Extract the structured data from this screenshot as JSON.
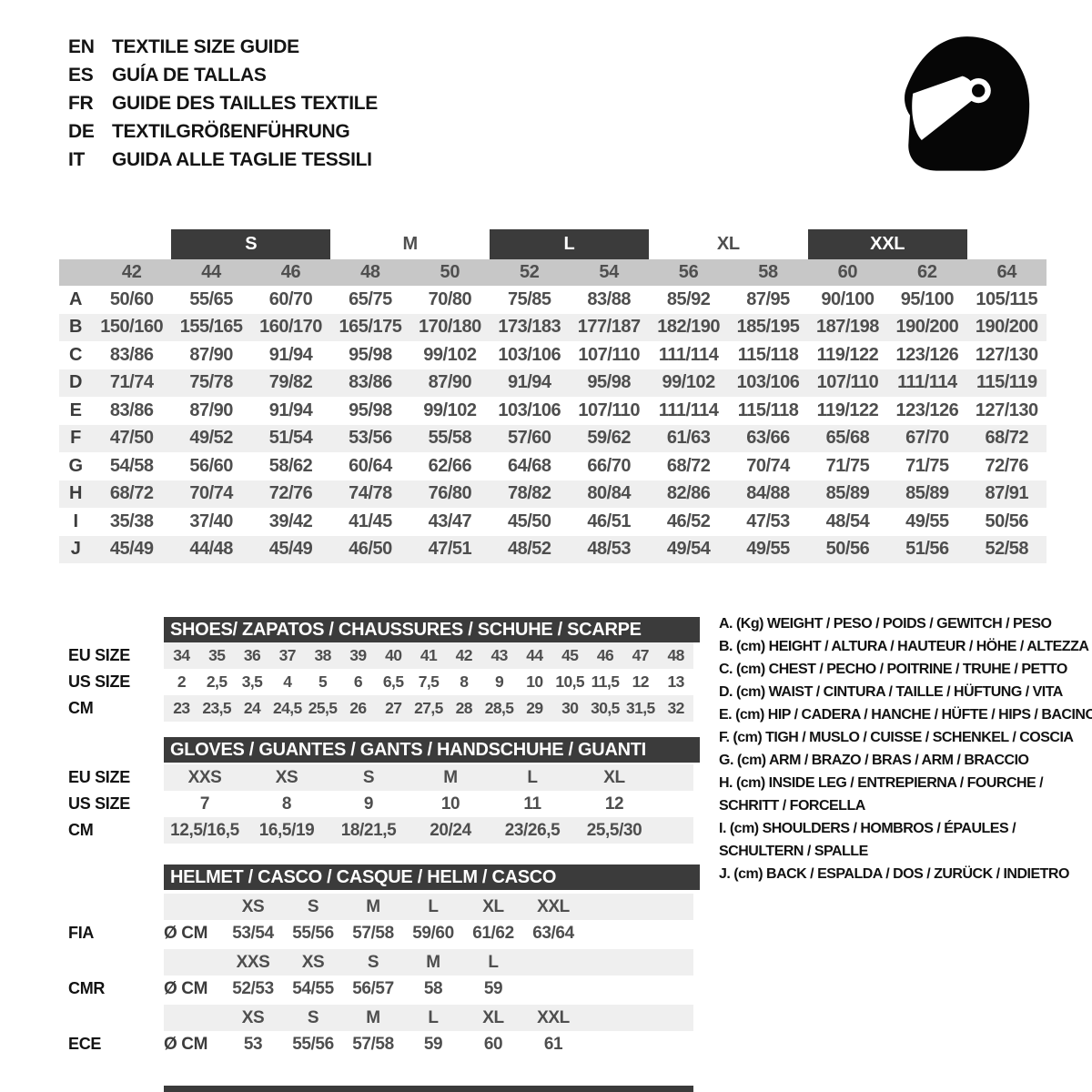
{
  "colors": {
    "dark_bar": "#3b3b3b",
    "number_band": "#c7c7c7",
    "row_stripe": "#efefef"
  },
  "header": {
    "languages": [
      {
        "code": "EN",
        "label": "TEXTILE SIZE GUIDE"
      },
      {
        "code": "ES",
        "label": "GUÍA DE TALLAS"
      },
      {
        "code": "FR",
        "label": "GUIDE DES TAILLES TEXTILE"
      },
      {
        "code": "DE",
        "label": "TEXTILGRÖßENFÜHRUNG"
      },
      {
        "code": "IT",
        "label": "GUIDA ALLE TAGLIE TESSILI"
      }
    ],
    "icon": "racing-helmet"
  },
  "main_table": {
    "groups": [
      {
        "label": "S",
        "boxed": true
      },
      {
        "label": "M",
        "boxed": false
      },
      {
        "label": "L",
        "boxed": true
      },
      {
        "label": "XL",
        "boxed": false
      },
      {
        "label": "XXL",
        "boxed": true
      }
    ],
    "columns": [
      "42",
      "44",
      "46",
      "48",
      "50",
      "52",
      "54",
      "56",
      "58",
      "60",
      "62",
      "64"
    ],
    "rows": [
      {
        "letter": "A",
        "values": [
          "50/60",
          "55/65",
          "60/70",
          "65/75",
          "70/80",
          "75/85",
          "83/88",
          "85/92",
          "87/95",
          "90/100",
          "95/100",
          "105/115"
        ]
      },
      {
        "letter": "B",
        "values": [
          "150/160",
          "155/165",
          "160/170",
          "165/175",
          "170/180",
          "173/183",
          "177/187",
          "182/190",
          "185/195",
          "187/198",
          "190/200",
          "190/200"
        ]
      },
      {
        "letter": "C",
        "values": [
          "83/86",
          "87/90",
          "91/94",
          "95/98",
          "99/102",
          "103/106",
          "107/110",
          "111/114",
          "115/118",
          "119/122",
          "123/126",
          "127/130"
        ]
      },
      {
        "letter": "D",
        "values": [
          "71/74",
          "75/78",
          "79/82",
          "83/86",
          "87/90",
          "91/94",
          "95/98",
          "99/102",
          "103/106",
          "107/110",
          "111/114",
          "115/119"
        ]
      },
      {
        "letter": "E",
        "values": [
          "83/86",
          "87/90",
          "91/94",
          "95/98",
          "99/102",
          "103/106",
          "107/110",
          "111/114",
          "115/118",
          "119/122",
          "123/126",
          "127/130"
        ]
      },
      {
        "letter": "F",
        "values": [
          "47/50",
          "49/52",
          "51/54",
          "53/56",
          "55/58",
          "57/60",
          "59/62",
          "61/63",
          "63/66",
          "65/68",
          "67/70",
          "68/72"
        ]
      },
      {
        "letter": "G",
        "values": [
          "54/58",
          "56/60",
          "58/62",
          "60/64",
          "62/66",
          "64/68",
          "66/70",
          "68/72",
          "70/74",
          "71/75",
          "71/75",
          "72/76"
        ]
      },
      {
        "letter": "H",
        "values": [
          "68/72",
          "70/74",
          "72/76",
          "74/78",
          "76/80",
          "78/82",
          "80/84",
          "82/86",
          "84/88",
          "85/89",
          "85/89",
          "87/91"
        ]
      },
      {
        "letter": "I",
        "values": [
          "35/38",
          "37/40",
          "39/42",
          "41/45",
          "43/47",
          "45/50",
          "46/51",
          "46/52",
          "47/53",
          "48/54",
          "49/55",
          "50/56"
        ]
      },
      {
        "letter": "J",
        "values": [
          "45/49",
          "44/48",
          "45/49",
          "46/50",
          "47/51",
          "48/52",
          "48/53",
          "49/54",
          "49/55",
          "50/56",
          "51/56",
          "52/58"
        ]
      }
    ]
  },
  "shoes": {
    "title": "SHOES/ ZAPATOS / CHAUSSURES / SCHUHE / SCARPE",
    "row_labels": [
      "EU SIZE",
      "US SIZE",
      "CM"
    ],
    "eu": [
      "34",
      "35",
      "36",
      "37",
      "38",
      "39",
      "40",
      "41",
      "42",
      "43",
      "44",
      "45",
      "46",
      "47",
      "48"
    ],
    "us": [
      "2",
      "2,5",
      "3,5",
      "4",
      "5",
      "6",
      "6,5",
      "7,5",
      "8",
      "9",
      "10",
      "10,5",
      "11,5",
      "12",
      "13"
    ],
    "cm": [
      "23",
      "23,5",
      "24",
      "24,5",
      "25,5",
      "26",
      "27",
      "27,5",
      "28",
      "28,5",
      "29",
      "30",
      "30,5",
      "31,5",
      "32"
    ]
  },
  "gloves": {
    "title": "GLOVES / GUANTES / GANTS / HANDSCHUHE / GUANTI",
    "row_labels": [
      "EU SIZE",
      "US SIZE",
      "CM"
    ],
    "eu": [
      "XXS",
      "XS",
      "S",
      "M",
      "L",
      "XL"
    ],
    "us": [
      "7",
      "8",
      "9",
      "10",
      "11",
      "12"
    ],
    "cm": [
      "12,5/16,5",
      "16,5/19",
      "18/21,5",
      "20/24",
      "23/26,5",
      "25,5/30"
    ]
  },
  "helmet": {
    "title": "HELMET / CASCO / CASQUE / HELM / CASCO",
    "unit_label": "Ø CM",
    "sections": [
      {
        "label": "FIA",
        "sizes": [
          "XS",
          "S",
          "M",
          "L",
          "XL",
          "XXL"
        ],
        "values": [
          "53/54",
          "55/56",
          "57/58",
          "59/60",
          "61/62",
          "63/64"
        ]
      },
      {
        "label": "CMR",
        "sizes": [
          "XXS",
          "XS",
          "S",
          "M",
          "L"
        ],
        "values": [
          "52/53",
          "54/55",
          "56/57",
          "58",
          "59"
        ]
      },
      {
        "label": "ECE",
        "sizes": [
          "XS",
          "S",
          "M",
          "L",
          "XL",
          "XXL"
        ],
        "values": [
          "53",
          "55/56",
          "57/58",
          "59",
          "60",
          "61"
        ]
      }
    ]
  },
  "legend": {
    "entries": [
      "A. (Kg) WEIGHT / PESO / POIDS / GEWITCH / PESO",
      "B. (cm) HEIGHT / ALTURA / HAUTEUR / HÖHE / ALTEZZA",
      "C. (cm) CHEST / PECHO / POITRINE / TRUHE / PETTO",
      "D. (cm) WAIST / CINTURA / TAILLE / HÜFTUNG / VITA",
      "E. (cm) HIP / CADERA / HANCHE / HÜFTE / HIPS /  BACINO",
      "F. (cm) TIGH / MUSLO / CUISSE / SCHENKEL / COSCIA",
      "G. (cm) ARM  / BRAZO / BRAS / ARM / BRACCIO",
      "H. (cm) INSIDE LEG / ENTREPIERNA / FOURCHE /\nSCHRITT / FORCELLA",
      "I.  (cm) SHOULDERS / HOMBROS / ÉPAULES /\nSCHULTERN / SPALLE",
      "J. (cm) BACK / ESPALDA / DOS / ZURÜCK / INDIETRO"
    ]
  }
}
